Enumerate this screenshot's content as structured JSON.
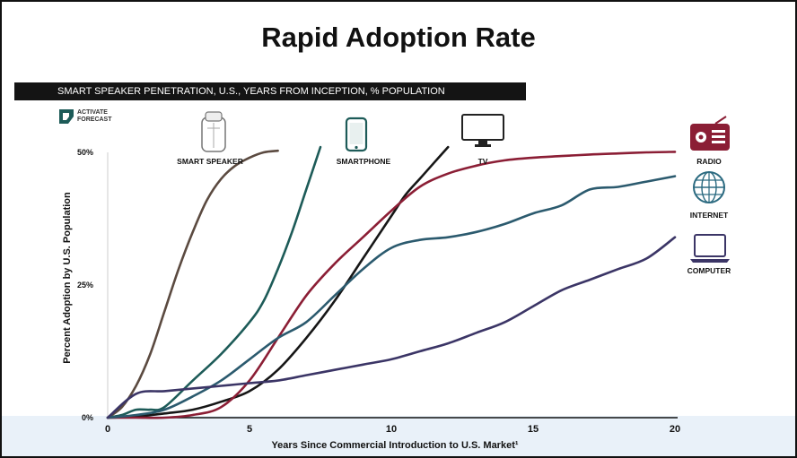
{
  "page": {
    "title": "Rapid Adoption Rate",
    "subtitle": "SMART SPEAKER PENETRATION, U.S., YEARS FROM INCEPTION, % POPULATION",
    "logo": {
      "text": "ACTIVATE\nFORECAST",
      "icon": "activate-logo-icon"
    }
  },
  "chart_data": {
    "type": "line",
    "xlabel": "Years Since Commercial Introduction to U.S. Market¹",
    "ylabel": "Percent Adoption by U.S. Population",
    "xlim": [
      0,
      20
    ],
    "ylim": [
      0,
      50
    ],
    "xticks": [
      0,
      5,
      10,
      15,
      20
    ],
    "yticks": [
      0,
      25,
      50
    ],
    "ytick_labels": [
      "0%",
      "25%",
      "50%"
    ],
    "grid": false,
    "series": [
      {
        "name": "SMART SPEAKER",
        "color": "#5b4a40",
        "icon": "smart-speaker-icon",
        "x": [
          0,
          0.5,
          1,
          1.5,
          2,
          2.5,
          3,
          3.5,
          4,
          4.5,
          5,
          5.5,
          6
        ],
        "y": [
          0,
          2,
          6,
          12,
          20,
          28,
          35,
          41,
          45,
          47.5,
          49,
          50,
          50.3
        ]
      },
      {
        "name": "SMARTPHONE",
        "color": "#1d5b58",
        "icon": "smartphone-icon",
        "x": [
          0,
          0.5,
          1,
          1.5,
          2,
          3,
          4,
          5,
          5.5,
          6,
          6.5,
          7,
          7.5
        ],
        "y": [
          0,
          0.5,
          1.5,
          1.5,
          2,
          7,
          12,
          18,
          22,
          28,
          35,
          43,
          51
        ]
      },
      {
        "name": "TV",
        "color": "#161616",
        "icon": "tv-icon",
        "x": [
          0,
          1,
          2,
          3,
          4,
          5,
          6,
          7,
          8,
          9,
          10,
          10.5,
          11,
          11.5,
          12
        ],
        "y": [
          0,
          0.2,
          0.8,
          1.5,
          3,
          5,
          9,
          15,
          22,
          30,
          38,
          42,
          45,
          48,
          51
        ]
      },
      {
        "name": "RADIO",
        "color": "#8b1e35",
        "icon": "radio-icon",
        "x": [
          0,
          1,
          2,
          3,
          4,
          5,
          6,
          7,
          8,
          9,
          10,
          11,
          12,
          13,
          14,
          15,
          16,
          17,
          18,
          19,
          20
        ],
        "y": [
          0,
          0,
          0,
          0.5,
          2,
          7,
          15,
          23,
          29,
          34,
          39,
          43.5,
          46,
          47.5,
          48.5,
          49,
          49.3,
          49.6,
          49.8,
          50,
          50.1
        ]
      },
      {
        "name": "INTERNET",
        "color": "#2b5a6e",
        "icon": "internet-icon",
        "x": [
          0,
          1,
          2,
          3,
          4,
          5,
          6,
          7,
          8,
          9,
          10,
          11,
          12,
          13,
          14,
          15,
          16,
          17,
          18,
          19,
          20
        ],
        "y": [
          0,
          0.5,
          1.5,
          4,
          7,
          11,
          15,
          18,
          23,
          28,
          32,
          33.5,
          34,
          35,
          36.5,
          38.5,
          40,
          43,
          43.5,
          44.5,
          45.5
        ]
      },
      {
        "name": "COMPUTER",
        "color": "#3b3566",
        "icon": "computer-icon",
        "x": [
          0,
          1,
          2,
          3,
          4,
          5,
          6,
          7,
          8,
          9,
          10,
          11,
          12,
          13,
          14,
          15,
          16,
          17,
          18,
          19,
          20
        ],
        "y": [
          0,
          4.5,
          5,
          5.5,
          6,
          6.5,
          7,
          8,
          9,
          10,
          11,
          12.5,
          14,
          16,
          18,
          21,
          24,
          26,
          28,
          30,
          34
        ]
      }
    ]
  }
}
